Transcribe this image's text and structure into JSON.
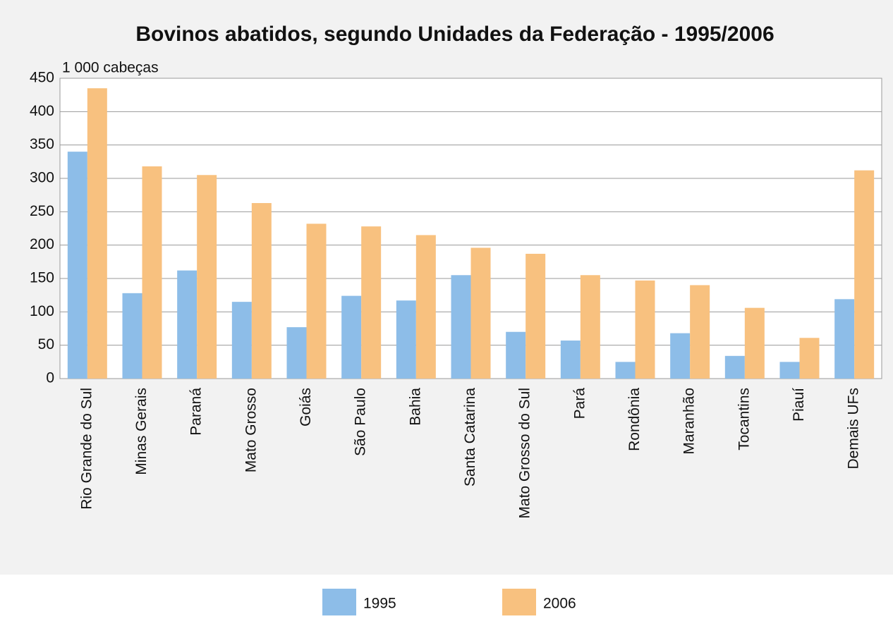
{
  "chart_data": {
    "type": "bar",
    "title": "Bovinos abatidos, segundo Unidades da Federação - 1995/2006",
    "y_label": "1 000 cabeças",
    "categories": [
      "Rio Grande do Sul",
      "Minas Gerais",
      "Paraná",
      "Mato Grosso",
      "Goiás",
      "São Paulo",
      "Bahia",
      "Santa Catarina",
      "Mato Grosso do Sul",
      "Pará",
      "Rondônia",
      "Maranhão",
      "Tocantins",
      "Piauí",
      "Demais UFs"
    ],
    "series": [
      {
        "name": "1995",
        "color": "#8dbde8",
        "values": [
          340,
          128,
          162,
          115,
          77,
          124,
          117,
          155,
          70,
          57,
          25,
          68,
          34,
          25,
          119
        ]
      },
      {
        "name": "2006",
        "color": "#f8c17f",
        "values": [
          435,
          318,
          305,
          263,
          232,
          228,
          215,
          196,
          187,
          155,
          147,
          140,
          106,
          61,
          312
        ]
      }
    ],
    "ylim": [
      0,
      450
    ],
    "yticks": [
      0,
      50,
      100,
      150,
      200,
      250,
      300,
      350,
      400,
      450
    ],
    "grid": true,
    "legend": "bottom"
  }
}
